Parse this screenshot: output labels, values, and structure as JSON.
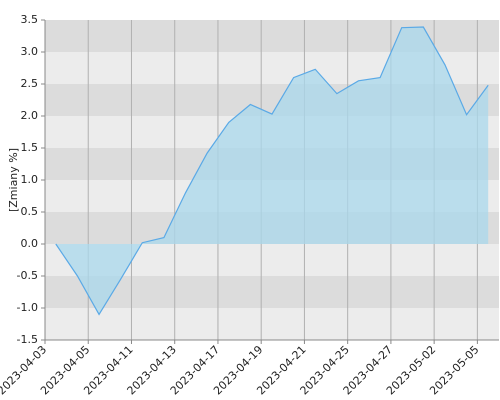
{
  "chart_data": {
    "type": "area",
    "y_label": "[Zmiany %]",
    "categories": [
      "2023-04-03",
      null,
      "2023-04-05",
      null,
      "2023-04-11",
      null,
      "2023-04-13",
      null,
      "2023-04-17",
      null,
      "2023-04-19",
      null,
      "2023-04-21",
      null,
      "2023-04-25",
      null,
      "2023-04-27",
      null,
      "2023-05-02",
      null,
      "2023-05-05"
    ],
    "series": [
      {
        "color": "#5aa9e6",
        "fill": "#a9d8ec",
        "values": [
          0,
          -0.5,
          -1.1,
          -0.55,
          0.02,
          0.1,
          0.8,
          1.42,
          1.9,
          2.18,
          2.03,
          2.6,
          2.73,
          2.35,
          2.55,
          2.6,
          3.38,
          3.39,
          2.8,
          2.02,
          2.48
        ]
      }
    ],
    "ylim": [
      -1.5,
      3.5
    ],
    "yticks": [
      -1.5,
      {
        "value": -1,
        "label": "-1.0"
      },
      -0.5,
      {
        "value": 0,
        "label": "0.0"
      },
      0.5,
      {
        "value": 1,
        "label": "1.0"
      },
      1.5,
      {
        "value": 2,
        "label": "2.0"
      },
      2.5,
      {
        "value": 3,
        "label": "3.0"
      },
      3.5
    ],
    "grid": true,
    "bands": [
      "#ececec",
      "#dcdcdc"
    ]
  }
}
